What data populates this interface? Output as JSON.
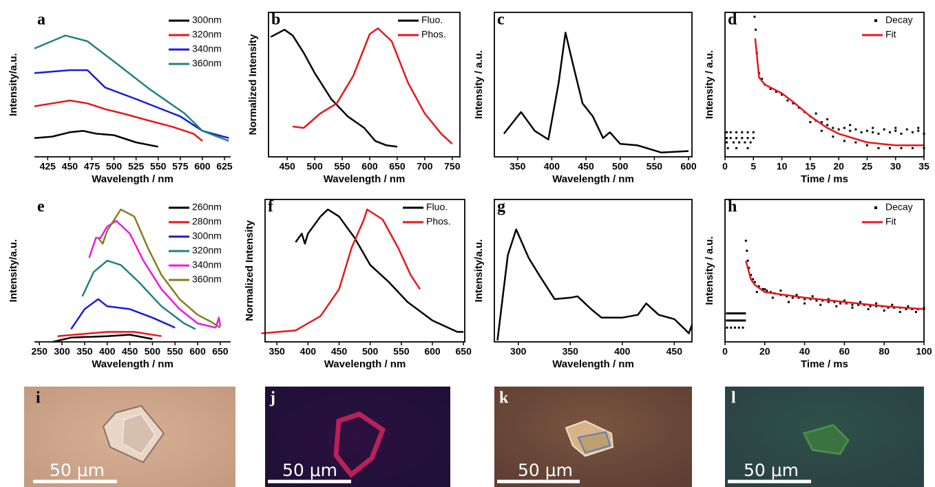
{
  "chart_data": [
    {
      "type": "line",
      "label": "a",
      "xlabel": "Wavelength / nm",
      "ylabel": "Intensity/a.u.",
      "box": false,
      "legend": "upper right",
      "xlim": [
        410,
        632
      ],
      "xticks": [
        425,
        450,
        475,
        500,
        525,
        550,
        575,
        600,
        625
      ],
      "ylim": [
        0,
        100
      ],
      "series": [
        {
          "name": "300nm",
          "color": "#000000",
          "style": "line",
          "x": [
            410,
            430,
            450,
            465,
            480,
            500,
            525,
            550
          ],
          "values": [
            13,
            14,
            17,
            18,
            16,
            15,
            10,
            7
          ]
        },
        {
          "name": "320nm",
          "color": "#e8161b",
          "style": "line",
          "x": [
            410,
            430,
            450,
            470,
            490,
            510,
            540,
            565,
            590,
            600
          ],
          "values": [
            35,
            37,
            39,
            37,
            33,
            30,
            25,
            21,
            16,
            11
          ]
        },
        {
          "name": "340nm",
          "color": "#1a1adb",
          "style": "line",
          "x": [
            410,
            450,
            470,
            490,
            525,
            575,
            600,
            630
          ],
          "values": [
            58,
            60,
            60,
            48,
            40,
            28,
            18,
            13
          ]
        },
        {
          "name": "360nm",
          "color": "#1e8282",
          "style": "line",
          "x": [
            410,
            445,
            470,
            500,
            540,
            580,
            600,
            630
          ],
          "values": [
            75,
            84,
            80,
            66,
            47,
            30,
            18,
            11
          ]
        }
      ]
    },
    {
      "type": "line",
      "label": "b",
      "xlabel": "Wavelength / nm",
      "ylabel": "Normalized Intensity",
      "box": true,
      "legend": "upper right",
      "xlim": [
        416,
        764
      ],
      "xticks": [
        450,
        500,
        550,
        600,
        650,
        700,
        750
      ],
      "ylim": [
        0,
        100
      ],
      "series": [
        {
          "name": "Fluo.",
          "color": "#000000",
          "style": "line",
          "x": [
            420,
            445,
            460,
            480,
            500,
            530,
            560,
            590,
            610,
            630,
            650
          ],
          "values": [
            83,
            88,
            84,
            72,
            58,
            40,
            28,
            20,
            11,
            8,
            7
          ]
        },
        {
          "name": "Phos.",
          "color": "#e8161b",
          "style": "line",
          "x": [
            460,
            480,
            510,
            540,
            570,
            600,
            615,
            640,
            670,
            700,
            730,
            750
          ],
          "values": [
            21,
            20,
            30,
            37,
            56,
            85,
            89,
            80,
            51,
            30,
            16,
            9
          ]
        }
      ]
    },
    {
      "type": "line",
      "label": "c",
      "xlabel": "Wavelength / nm",
      "ylabel": "Intensity / a.u.",
      "box": true,
      "xlim": [
        316,
        605
      ],
      "xticks": [
        350,
        400,
        450,
        500,
        550,
        600
      ],
      "ylim": [
        0,
        100
      ],
      "series": [
        {
          "color": "#000000",
          "style": "line",
          "x": [
            330,
            355,
            375,
            395,
            410,
            420,
            430,
            445,
            460,
            475,
            485,
            500,
            525,
            560,
            600
          ],
          "values": [
            16,
            31,
            18,
            12,
            51,
            86,
            66,
            37,
            28,
            13,
            17,
            9,
            8,
            3,
            4
          ]
        }
      ]
    },
    {
      "type": "line",
      "label": "d",
      "xlabel": "Time / ms",
      "ylabel": "Intensity / a.u.",
      "box": true,
      "legend": "upper right",
      "xlim": [
        0,
        35
      ],
      "xticks": [
        0,
        5,
        10,
        15,
        20,
        25,
        30,
        35
      ],
      "ylim": [
        0,
        100
      ],
      "series": [
        {
          "name": "Decay",
          "color": "#000000",
          "style": "dots",
          "x": [
            0.3,
            1,
            2,
            3,
            4,
            5,
            0.3,
            1,
            2,
            3,
            4,
            5,
            0.3,
            1.5,
            2.5,
            3.5,
            4.5,
            0.5,
            2,
            4,
            5.2,
            5.4,
            5.6,
            6,
            6.5,
            7,
            8,
            9,
            10,
            11,
            12,
            13,
            14,
            15,
            16,
            17,
            18,
            19,
            20,
            21,
            22,
            23,
            24,
            25,
            26,
            27,
            28,
            29,
            30,
            31,
            32,
            33,
            34,
            35,
            15,
            17,
            19,
            21,
            23,
            25,
            27,
            29,
            31,
            33,
            35,
            16,
            18,
            22,
            26,
            30,
            34
          ],
          "values": [
            17,
            17,
            17,
            17,
            17,
            17,
            13,
            13,
            13,
            13,
            13,
            13,
            10,
            10,
            10,
            10,
            10,
            6,
            6,
            6,
            97,
            88,
            72,
            58,
            54,
            50,
            47,
            45,
            43,
            39,
            37,
            34,
            31,
            28,
            25,
            24,
            22,
            20,
            19,
            20,
            18,
            19,
            17,
            18,
            17,
            16,
            19,
            17,
            18,
            16,
            19,
            17,
            18,
            16,
            24,
            18,
            14,
            11,
            10,
            8,
            6,
            6,
            6,
            6,
            6,
            30,
            26,
            22,
            20,
            20,
            20
          ]
        },
        {
          "name": "Fit",
          "color": "#e8161b",
          "style": "line",
          "x": [
            5.3,
            6,
            7,
            8,
            10,
            12,
            15,
            18,
            20,
            25,
            30,
            35
          ],
          "values": [
            82,
            55,
            50,
            48,
            44,
            38,
            28,
            20,
            16,
            10,
            8,
            8
          ]
        }
      ]
    },
    {
      "type": "line",
      "label": "e",
      "xlabel": "Wavelength / nm",
      "ylabel": "Intensity/a.u.",
      "box": false,
      "legend": "upper right",
      "xlim": [
        239,
        673
      ],
      "xticks": [
        250,
        300,
        350,
        400,
        450,
        500,
        550,
        600,
        650
      ],
      "ylim": [
        0,
        100
      ],
      "series": [
        {
          "name": "260nm",
          "color": "#000000",
          "style": "line",
          "x": [
            280,
            320,
            400,
            450,
            500
          ],
          "values": [
            0,
            3,
            4,
            5,
            2
          ]
        },
        {
          "name": "280nm",
          "color": "#e8161b",
          "style": "line",
          "x": [
            290,
            400,
            460,
            520
          ],
          "values": [
            4,
            7,
            7,
            4
          ]
        },
        {
          "name": "300nm",
          "color": "#1a1adb",
          "style": "line",
          "x": [
            320,
            350,
            380,
            400,
            450,
            500,
            550
          ],
          "values": [
            9,
            23,
            30,
            25,
            23,
            17,
            10
          ]
        },
        {
          "name": "320nm",
          "color": "#1e8282",
          "style": "line",
          "x": [
            345,
            370,
            400,
            430,
            470,
            520,
            570,
            595
          ],
          "values": [
            32,
            49,
            57,
            54,
            42,
            25,
            13,
            9
          ]
        },
        {
          "name": "340nm",
          "color": "#ee16ee",
          "style": "line",
          "x": [
            360,
            375,
            385,
            400,
            420,
            450,
            480,
            520,
            560,
            600,
            640,
            647,
            650
          ],
          "values": [
            59,
            73,
            73,
            81,
            85,
            76,
            57,
            37,
            23,
            13,
            10,
            17,
            11
          ]
        },
        {
          "name": "360nm",
          "color": "#80801a",
          "style": "line",
          "x": [
            380,
            390,
            400,
            430,
            460,
            490,
            520,
            560,
            600,
            630,
            650
          ],
          "values": [
            73,
            69,
            78,
            93,
            88,
            66,
            47,
            30,
            19,
            14,
            10
          ]
        }
      ]
    },
    {
      "type": "line",
      "label": "f",
      "xlabel": "Wavelength / nm",
      "ylabel": "Normalized Intensity",
      "box": true,
      "legend": "upper right",
      "xlim": [
        331,
        652
      ],
      "xticks": [
        350,
        400,
        450,
        500,
        550,
        600,
        650
      ],
      "ylim": [
        0,
        100
      ],
      "series": [
        {
          "name": "Fluo.",
          "color": "#000000",
          "style": "line",
          "x": [
            380,
            390,
            395,
            400,
            420,
            432,
            450,
            475,
            500,
            530,
            560,
            600,
            640,
            650
          ],
          "values": [
            70,
            76,
            69,
            76,
            88,
            93,
            88,
            73,
            54,
            42,
            28,
            15,
            7,
            7
          ]
        },
        {
          "name": "Phos.",
          "color": "#e8161b",
          "style": "line",
          "x": [
            325,
            380,
            420,
            450,
            470,
            490,
            495,
            520,
            545,
            565,
            580
          ],
          "values": [
            6,
            8,
            18,
            37,
            66,
            86,
            93,
            86,
            66,
            47,
            37
          ]
        }
      ]
    },
    {
      "type": "line",
      "label": "g",
      "xlabel": "Wavelength / nm",
      "ylabel": "Intensity/a.u.",
      "box": true,
      "xlim": [
        277,
        467
      ],
      "xticks": [
        300,
        350,
        400,
        450
      ],
      "ylim": [
        0,
        100
      ],
      "series": [
        {
          "color": "#000000",
          "style": "line",
          "x": [
            280,
            290,
            298,
            310,
            320,
            335,
            350,
            357,
            370,
            380,
            400,
            415,
            423,
            435,
            450,
            460,
            464,
            467
          ],
          "values": [
            1,
            61,
            79,
            59,
            47,
            30,
            31,
            32,
            23,
            17,
            17,
            19,
            27,
            19,
            16,
            9,
            6,
            12
          ]
        }
      ]
    },
    {
      "type": "line",
      "label": "h",
      "xlabel": "Time / ms",
      "ylabel": "Intensity / a.u.",
      "box": true,
      "legend": "upper right",
      "xlim": [
        0,
        100
      ],
      "xticks": [
        0,
        20,
        40,
        60,
        80,
        100
      ],
      "ylim": [
        0,
        100
      ],
      "series": [
        {
          "name": "Decay",
          "color": "#000000",
          "style": "dots",
          "x": [
            1,
            2,
            3,
            4,
            5,
            6,
            7,
            8,
            9,
            10,
            1,
            2,
            3,
            4,
            5,
            6,
            7,
            8,
            9,
            10,
            1,
            3,
            5,
            7,
            9,
            10.5,
            11,
            11.5,
            12,
            13,
            14,
            15,
            17,
            19,
            21,
            23,
            25,
            28,
            31,
            34,
            37,
            40,
            43,
            46,
            49,
            52,
            55,
            58,
            61,
            64,
            67,
            70,
            73,
            76,
            79,
            82,
            85,
            88,
            91,
            94,
            97,
            100,
            16,
            20,
            24,
            28,
            32,
            36,
            40,
            44,
            48,
            52,
            56,
            60,
            64,
            68,
            72,
            76,
            80,
            84,
            88,
            92,
            96,
            100
          ],
          "values": [
            20,
            20,
            20,
            20,
            20,
            20,
            20,
            20,
            20,
            20,
            15,
            15,
            15,
            15,
            15,
            15,
            15,
            15,
            15,
            15,
            10,
            10,
            10,
            10,
            10,
            71,
            64,
            57,
            52,
            47,
            44,
            42,
            39,
            37,
            36,
            35,
            34,
            33,
            32,
            31,
            31,
            30,
            30,
            29,
            29,
            28,
            28,
            27,
            27,
            26,
            26,
            26,
            25,
            25,
            25,
            24,
            24,
            24,
            23,
            23,
            23,
            23,
            35,
            37,
            31,
            36,
            28,
            33,
            27,
            32,
            26,
            30,
            25,
            29,
            24,
            28,
            23,
            27,
            22,
            26,
            21,
            25,
            21,
            24
          ]
        },
        {
          "name": "Fit",
          "color": "#e8161b",
          "style": "line",
          "x": [
            10.5,
            13,
            15,
            20,
            30,
            40,
            60,
            80,
            100
          ],
          "values": [
            57,
            44,
            40,
            35,
            33,
            31,
            28,
            25,
            23
          ]
        }
      ]
    }
  ],
  "images": [
    {
      "label": "i",
      "scale": "50 μm"
    },
    {
      "label": "j",
      "scale": "50 μm"
    },
    {
      "label": "k",
      "scale": "50 μm"
    },
    {
      "label": "l",
      "scale": "50 μm"
    }
  ]
}
